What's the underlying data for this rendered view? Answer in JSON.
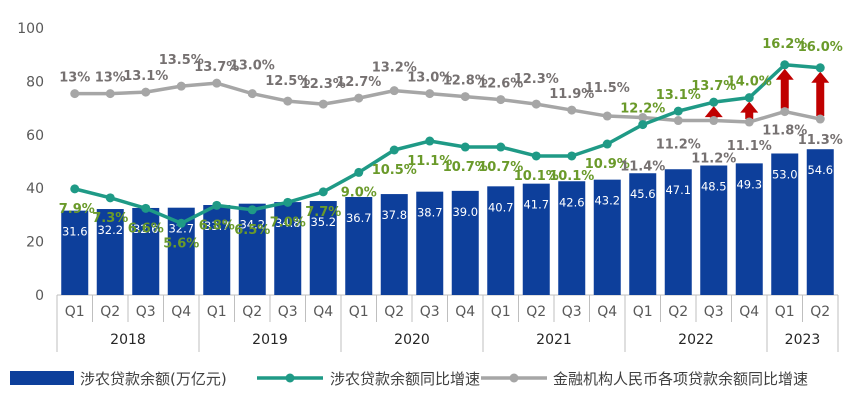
{
  "chart_data": {
    "type": "bar",
    "ylim": [
      0,
      100
    ],
    "yticks": [
      0,
      20,
      40,
      60,
      80,
      100
    ],
    "categories": [
      "Q1",
      "Q2",
      "Q3",
      "Q4",
      "Q1",
      "Q2",
      "Q3",
      "Q4",
      "Q1",
      "Q2",
      "Q3",
      "Q4",
      "Q1",
      "Q2",
      "Q3",
      "Q4",
      "Q1",
      "Q2",
      "Q3",
      "Q4",
      "Q1",
      "Q2"
    ],
    "years": [
      "2018",
      "2019",
      "2020",
      "2021",
      "2022",
      "2023"
    ],
    "series": [
      {
        "name": "涉农贷款余额(万亿元)",
        "type": "bar",
        "color": "#0d3f9b",
        "values": [
          31.6,
          32.2,
          32.6,
          32.7,
          33.7,
          34.2,
          34.8,
          35.2,
          36.7,
          37.8,
          38.7,
          39.0,
          40.7,
          41.7,
          42.6,
          43.2,
          45.6,
          47.1,
          48.5,
          49.3,
          53.0,
          54.6
        ],
        "labels": [
          "31.6",
          "32.2",
          "32.6",
          "32.7",
          "33.7",
          "34.2",
          "34.8",
          "35.2",
          "36.7",
          "37.8",
          "38.7",
          "39.0",
          "40.7",
          "41.7",
          "42.6",
          "43.2",
          "45.6",
          "47.1",
          "48.5",
          "49.3",
          "53.0",
          "54.6"
        ]
      },
      {
        "name": "涉农贷款余额同比增速",
        "type": "line",
        "color": "#1f9a86",
        "label_color": "#6a9a2a",
        "values": [
          7.9,
          7.3,
          6.6,
          5.6,
          6.8,
          6.5,
          7.0,
          7.7,
          9.0,
          10.5,
          11.1,
          10.7,
          10.7,
          10.1,
          10.1,
          10.9,
          12.2,
          13.1,
          13.7,
          14.0,
          16.2,
          16.0
        ],
        "labels": [
          "7.9%",
          "7.3%",
          "6.6%",
          "5.6%",
          "6.8%",
          "6.5%",
          "7.0%",
          "7.7%",
          "9.0%",
          "10.5%",
          "11.1%",
          "10.7%",
          "10.7%",
          "10.1%",
          "10.1%",
          "10.9%",
          "12.2%",
          "13.1%",
          "13.7%",
          "14.0%",
          "16.2%",
          "16.0%"
        ]
      },
      {
        "name": "金融机构人民币各项贷款余额同比增速",
        "type": "line",
        "color": "#a6a6a6",
        "label_color": "#767171",
        "values": [
          13.0,
          13.0,
          13.1,
          13.5,
          13.7,
          13.0,
          12.5,
          12.3,
          12.7,
          13.2,
          13.0,
          12.8,
          12.6,
          12.3,
          11.9,
          11.5,
          11.4,
          11.2,
          11.2,
          11.1,
          11.8,
          11.3
        ],
        "labels": [
          "13%",
          "13%",
          "13.1%",
          "13.5%",
          "13.7%",
          "13.0%",
          "12.5%",
          "12.3%",
          "12.7%",
          "13.2%",
          "13.0%",
          "12.8%",
          "12.6%",
          "12.3%",
          "11.9%",
          "11.5%",
          "11.4%",
          "11.2%",
          "11.2%",
          "11.1%",
          "11.8%",
          "11.3%"
        ]
      }
    ],
    "gap_arrows": {
      "color": "#c00000",
      "from_index": 17,
      "to_index": 21
    },
    "legend": "bottom"
  }
}
